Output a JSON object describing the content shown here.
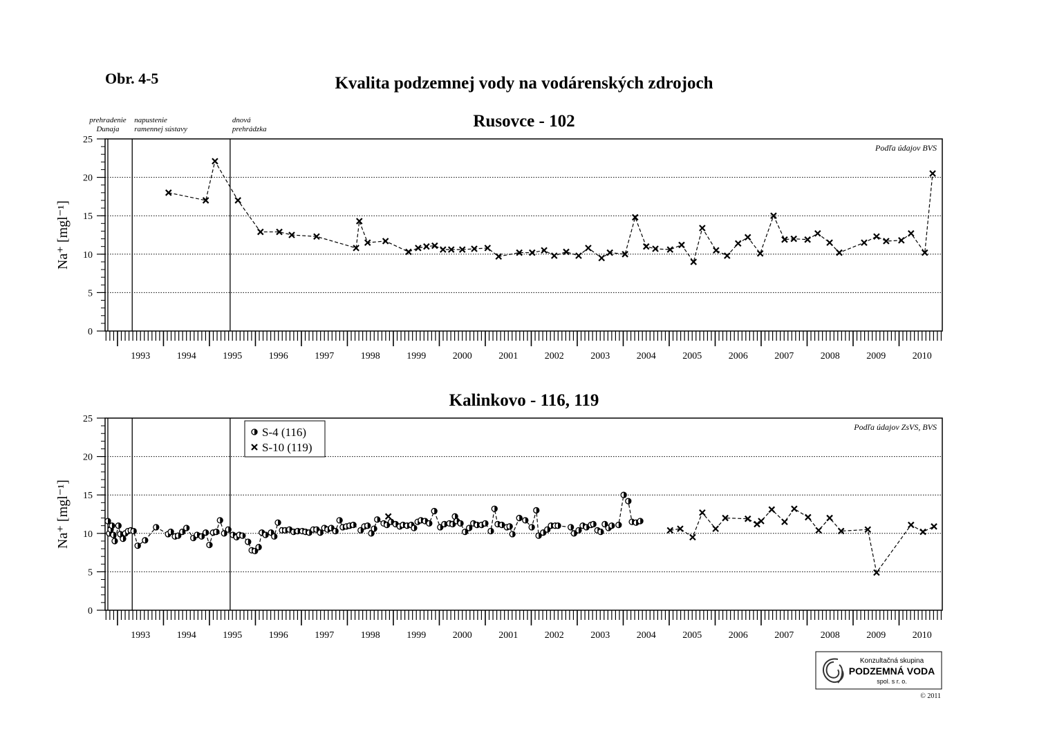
{
  "figure_label": "Obr. 4-5",
  "title": "Kvalita podzemnej vody na vodárenských zdrojoch",
  "logo": {
    "line1": "Konzultačná skupina",
    "line2": "PODZEMNÁ VODA",
    "line3": "spol. s r. o.",
    "copyright": "© 2011"
  },
  "chart_data": [
    {
      "type": "line",
      "title": "Rusovce - 102",
      "ylabel": "Na⁺ [mgl⁻¹]",
      "note": "Podľa údajov BVS",
      "xlim": [
        1992.73,
        2010.94
      ],
      "ylim": [
        0,
        25
      ],
      "yticks": [
        0,
        5,
        10,
        15,
        20,
        25
      ],
      "grid": true,
      "xminor_per_unit": 12,
      "yminor_step": 1,
      "xticks": [
        {
          "value": 1993.5,
          "label": "1993"
        },
        {
          "value": 1994.5,
          "label": "1994"
        },
        {
          "value": 1995.5,
          "label": "1995"
        },
        {
          "value": 1996.5,
          "label": "1996"
        },
        {
          "value": 1997.5,
          "label": "1997"
        },
        {
          "value": 1998.5,
          "label": "1998"
        },
        {
          "value": 1999.5,
          "label": "1999"
        },
        {
          "value": 2000.5,
          "label": "2000"
        },
        {
          "value": 2001.5,
          "label": "2001"
        },
        {
          "value": 2002.5,
          "label": "2002"
        },
        {
          "value": 2003.5,
          "label": "2003"
        },
        {
          "value": 2004.5,
          "label": "2004"
        },
        {
          "value": 2005.5,
          "label": "2005"
        },
        {
          "value": 2006.5,
          "label": "2006"
        },
        {
          "value": 2007.5,
          "label": "2007"
        },
        {
          "value": 2008.5,
          "label": "2008"
        },
        {
          "value": 2009.5,
          "label": "2009"
        },
        {
          "value": 2010.5,
          "label": "2010"
        }
      ],
      "events": [
        {
          "x": 1992.79,
          "label": [
            "prehradenie",
            "Dunaja"
          ]
        },
        {
          "x": 1993.32,
          "label": [
            "napustenie",
            "ramennej sústavy"
          ]
        },
        {
          "x": 1995.45,
          "label": [
            "dnová",
            "prehrádzka"
          ]
        }
      ],
      "series": [
        {
          "marker": "x",
          "color": "#000000",
          "x": [
            1994.11,
            1994.92,
            1995.12,
            1995.62,
            1996.11,
            1996.52,
            1996.79,
            1997.33,
            1998.19,
            1998.26,
            1998.44,
            1998.83,
            1999.33,
            1999.54,
            1999.72,
            1999.9,
            2000.08,
            2000.26,
            2000.5,
            2000.76,
            2001.05,
            2001.29,
            2001.74,
            2002.02,
            2002.28,
            2002.5,
            2002.76,
            2003.03,
            2003.24,
            2003.53,
            2003.71,
            2004.04,
            2004.26,
            2004.5,
            2004.7,
            2005.02,
            2005.27,
            2005.53,
            2005.72,
            2006.02,
            2006.26,
            2006.5,
            2006.71,
            2006.98,
            2007.27,
            2007.51,
            2007.71,
            2008.01,
            2008.23,
            2008.49,
            2008.7,
            2009.24,
            2009.51,
            2009.72,
            2010.05,
            2010.26,
            2010.56,
            2010.73
          ],
          "values": [
            18,
            17,
            22.1,
            17,
            12.9,
            12.9,
            12.5,
            12.3,
            10.8,
            14.3,
            11.5,
            11.7,
            10.3,
            10.8,
            11,
            11.1,
            10.6,
            10.6,
            10.6,
            10.7,
            10.8,
            9.7,
            10.2,
            10.2,
            10.5,
            9.8,
            10.3,
            9.8,
            10.8,
            9.5,
            10.2,
            10,
            14.8,
            11,
            10.7,
            10.6,
            11.2,
            9,
            13.4,
            10.5,
            9.8,
            11.4,
            12.2,
            10.1,
            15,
            11.9,
            12,
            11.9,
            12.7,
            11.5,
            10.2,
            11.5,
            12.3,
            11.7,
            11.8,
            12.7,
            10.2,
            20.5
          ]
        }
      ]
    },
    {
      "type": "line",
      "title": "Kalinkovo - 116, 119",
      "ylabel": "Na⁺ [mgl⁻¹]",
      "note": "Podľa údajov ZsVS, BVS",
      "xlim": [
        1992.73,
        2010.94
      ],
      "ylim": [
        0,
        25
      ],
      "yticks": [
        0,
        5,
        10,
        15,
        20,
        25
      ],
      "grid": true,
      "xminor_per_unit": 12,
      "yminor_step": 1,
      "legend": "upper left",
      "xticks": [
        {
          "value": 1993.5,
          "label": "1993"
        },
        {
          "value": 1994.5,
          "label": "1994"
        },
        {
          "value": 1995.5,
          "label": "1995"
        },
        {
          "value": 1996.5,
          "label": "1996"
        },
        {
          "value": 1997.5,
          "label": "1997"
        },
        {
          "value": 1998.5,
          "label": "1998"
        },
        {
          "value": 1999.5,
          "label": "1999"
        },
        {
          "value": 2000.5,
          "label": "2000"
        },
        {
          "value": 2001.5,
          "label": "2001"
        },
        {
          "value": 2002.5,
          "label": "2002"
        },
        {
          "value": 2003.5,
          "label": "2003"
        },
        {
          "value": 2004.5,
          "label": "2004"
        },
        {
          "value": 2005.5,
          "label": "2005"
        },
        {
          "value": 2006.5,
          "label": "2006"
        },
        {
          "value": 2007.5,
          "label": "2007"
        },
        {
          "value": 2008.5,
          "label": "2008"
        },
        {
          "value": 2009.5,
          "label": "2009"
        },
        {
          "value": 2010.5,
          "label": "2010"
        }
      ],
      "events": [
        {
          "x": 1992.79
        },
        {
          "x": 1993.32
        },
        {
          "x": 1995.45
        }
      ],
      "series": [
        {
          "name": "S-4 (116)",
          "marker": "half-circle",
          "color": "#000000",
          "x": [
            1992.79,
            1992.82,
            1992.85,
            1992.88,
            1992.91,
            1992.94,
            1993.02,
            1993.06,
            1993.12,
            1993.17,
            1993.23,
            1993.29,
            1993.35,
            1993.44,
            1993.6,
            1993.84,
            1994.1,
            1994.16,
            1994.25,
            1994.32,
            1994.41,
            1994.5,
            1994.65,
            1994.73,
            1994.83,
            1994.92,
            1995,
            1995.08,
            1995.15,
            1995.23,
            1995.32,
            1995.41,
            1995.51,
            1995.59,
            1995.65,
            1995.72,
            1995.84,
            1995.92,
            1995.99,
            1996.07,
            1996.14,
            1996.22,
            1996.34,
            1996.41,
            1996.49,
            1996.58,
            1996.65,
            1996.74,
            1996.83,
            1996.92,
            1997.02,
            1997.09,
            1997.17,
            1997.26,
            1997.33,
            1997.41,
            1997.5,
            1997.57,
            1997.65,
            1997.74,
            1997.83,
            1997.9,
            1997.98,
            1998.05,
            1998.13,
            1998.29,
            1998.37,
            1998.44,
            1998.52,
            1998.58,
            1998.65,
            1998.79,
            1998.86,
            1998.95,
            1999.05,
            1999.14,
            1999.21,
            1999.3,
            1999.39,
            1999.45,
            1999.53,
            1999.6,
            1999.69,
            1999.78,
            1999.89,
            2000.02,
            2000.11,
            2000.22,
            2000.29,
            2000.34,
            2000.38,
            2000.46,
            2000.56,
            2000.65,
            2000.74,
            2000.82,
            2000.92,
            2001,
            2001.12,
            2001.2,
            2001.27,
            2001.36,
            2001.47,
            2001.53,
            2001.59,
            2001.74,
            2001.87,
            2002.01,
            2002.11,
            2002.16,
            2002.26,
            2002.35,
            2002.43,
            2002.52,
            2002.58,
            2002.86,
            2002.93,
            2003.03,
            2003.12,
            2003.2,
            2003.3,
            2003.35,
            2003.44,
            2003.51,
            2003.6,
            2003.68,
            2003.75,
            2003.9,
            2004.01,
            2004.11,
            2004.19,
            2004.28,
            2004.37
          ],
          "values": [
            11.6,
            10,
            10.5,
            11,
            9.8,
            9,
            11,
            9.9,
            9.3,
            10,
            10.3,
            10.4,
            10.3,
            8.4,
            9.1,
            10.8,
            9.9,
            10.2,
            9.6,
            9.7,
            10.2,
            10.7,
            9.4,
            9.8,
            9.6,
            10.1,
            8.5,
            10.1,
            10.2,
            11.7,
            10,
            10.5,
            9.8,
            9.5,
            9.8,
            9.7,
            8.9,
            7.8,
            7.7,
            8.2,
            10.1,
            9.8,
            10.1,
            9.6,
            11.4,
            10.4,
            10.4,
            10.5,
            10.2,
            10.3,
            10.3,
            10.2,
            10.1,
            10.5,
            10.5,
            10.1,
            10.7,
            10.5,
            10.7,
            10.3,
            11.7,
            10.8,
            10.9,
            11,
            11.1,
            10.4,
            10.9,
            11,
            10,
            10.6,
            11.8,
            11.3,
            11.1,
            11.5,
            11.2,
            10.9,
            11.1,
            11,
            11.1,
            10.7,
            11.5,
            11.7,
            11.6,
            11.3,
            12.9,
            10.8,
            11.2,
            11.3,
            11.2,
            12.2,
            11.6,
            11.3,
            10.2,
            10.7,
            11.3,
            11.1,
            11.1,
            11.3,
            10.3,
            13.2,
            11.2,
            11.1,
            10.8,
            10.9,
            9.9,
            12,
            11.7,
            10.8,
            13,
            9.7,
            10.1,
            10.5,
            11,
            11,
            11,
            10.8,
            10,
            10.4,
            11,
            10.8,
            11.1,
            11.2,
            10.4,
            10.2,
            11.2,
            10.7,
            11,
            11.1,
            15,
            14.2,
            11.5,
            11.4,
            11.6
          ]
        },
        {
          "name": "S-10 (119)",
          "marker": "x",
          "color": "#000000",
          "x": [
            1998.89,
            null,
            2005.02,
            2005.24,
            2005.51,
            2005.72,
            2006.01,
            2006.22,
            2006.71,
            2006.91,
            2007,
            2007.23,
            2007.51,
            2007.72,
            2008.02,
            2008.25,
            2008.49,
            2008.74,
            2009.32,
            2009.51,
            2010.26,
            2010.52,
            2010.76
          ],
          "values": [
            12.2,
            null,
            10.4,
            10.6,
            9.5,
            12.7,
            10.6,
            12,
            11.9,
            11.2,
            11.6,
            13.1,
            11.5,
            13.2,
            12.1,
            10.4,
            12,
            10.3,
            10.5,
            4.9,
            11.1,
            10.2,
            10.9
          ]
        }
      ]
    }
  ]
}
